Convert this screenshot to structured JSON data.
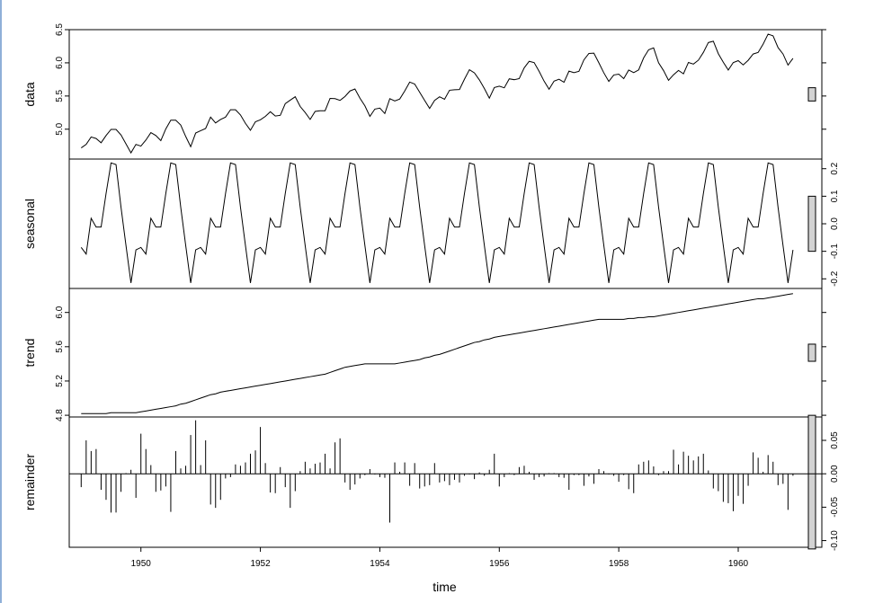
{
  "chart_data": {
    "type": "line",
    "title": "",
    "xlabel": "time",
    "xlim": [
      1948.8,
      1961.4
    ],
    "x_ticks": [
      1950,
      1952,
      1954,
      1956,
      1958,
      1960
    ],
    "x_tick_labels": [
      "1950",
      "1952",
      "1954",
      "1956",
      "1958",
      "1960"
    ],
    "start": 1949,
    "frequency": 12,
    "panels": [
      {
        "name": "data",
        "ylabel": "data",
        "ylim": [
          4.55,
          6.5
        ],
        "y_ticks": [
          5.0,
          5.5,
          6.0,
          6.5
        ],
        "y_tick_labels": [
          "5.0",
          "5.5",
          "6.0",
          "6.5"
        ],
        "axis_side": "left",
        "scale_bar_height": 0.2,
        "values": [
          4.718,
          4.771,
          4.883,
          4.86,
          4.796,
          4.905,
          4.997,
          4.997,
          4.913,
          4.779,
          4.644,
          4.771,
          4.745,
          4.836,
          4.949,
          4.905,
          4.828,
          5.004,
          5.136,
          5.136,
          5.063,
          4.89,
          4.736,
          4.942,
          4.977,
          5.011,
          5.182,
          5.094,
          5.147,
          5.182,
          5.293,
          5.293,
          5.215,
          5.088,
          4.984,
          5.112,
          5.142,
          5.193,
          5.263,
          5.199,
          5.209,
          5.385,
          5.438,
          5.489,
          5.342,
          5.252,
          5.147,
          5.268,
          5.278,
          5.278,
          5.464,
          5.46,
          5.434,
          5.493,
          5.576,
          5.606,
          5.468,
          5.352,
          5.193,
          5.303,
          5.318,
          5.236,
          5.46,
          5.425,
          5.455,
          5.576,
          5.71,
          5.68,
          5.557,
          5.434,
          5.313,
          5.434,
          5.489,
          5.451,
          5.587,
          5.595,
          5.598,
          5.753,
          5.897,
          5.849,
          5.743,
          5.613,
          5.468,
          5.628,
          5.649,
          5.624,
          5.759,
          5.746,
          5.762,
          5.924,
          6.023,
          6.004,
          5.872,
          5.724,
          5.602,
          5.724,
          5.753,
          5.707,
          5.875,
          5.852,
          5.872,
          6.045,
          6.142,
          6.146,
          6.001,
          5.849,
          5.72,
          5.817,
          5.829,
          5.762,
          5.891,
          5.852,
          5.894,
          6.075,
          6.197,
          6.225,
          6.001,
          5.883,
          5.737,
          5.82,
          5.886,
          5.835,
          6.006,
          5.981,
          6.04,
          6.157,
          6.306,
          6.326,
          6.138,
          6.009,
          5.892,
          6.004,
          6.033,
          5.969,
          6.038,
          6.133,
          6.157,
          6.282,
          6.433,
          6.407,
          6.23,
          6.133,
          5.966,
          6.068
        ]
      },
      {
        "name": "seasonal",
        "ylabel": "seasonal",
        "ylim": [
          -0.235,
          0.235
        ],
        "y_ticks": [
          -0.2,
          -0.1,
          0.0,
          0.1,
          0.2
        ],
        "y_tick_labels": [
          "-0.2",
          "-0.1",
          "0.0",
          "0.1",
          "0.2"
        ],
        "axis_side": "right",
        "scale_bar_height": 0.2,
        "cycle": [
          -0.086,
          -0.11,
          0.02,
          -0.012,
          -0.012,
          0.11,
          0.221,
          0.215,
          0.06,
          -0.079,
          -0.215,
          -0.095
        ],
        "years": 12
      },
      {
        "name": "trend",
        "ylabel": "trend",
        "ylim": [
          4.78,
          6.28
        ],
        "y_ticks": [
          4.8,
          5.2,
          5.6,
          6.0
        ],
        "y_tick_labels": [
          "4.8",
          "5.2",
          "5.6",
          "6.0"
        ],
        "axis_side": "left",
        "scale_bar_height": 0.2,
        "values": [
          4.82,
          4.82,
          4.82,
          4.82,
          4.82,
          4.82,
          4.83,
          4.83,
          4.83,
          4.83,
          4.83,
          4.83,
          4.84,
          4.85,
          4.86,
          4.87,
          4.88,
          4.89,
          4.9,
          4.91,
          4.93,
          4.94,
          4.96,
          4.98,
          5.0,
          5.02,
          5.04,
          5.05,
          5.07,
          5.08,
          5.09,
          5.1,
          5.11,
          5.12,
          5.13,
          5.14,
          5.15,
          5.16,
          5.17,
          5.18,
          5.19,
          5.2,
          5.21,
          5.22,
          5.23,
          5.24,
          5.25,
          5.26,
          5.27,
          5.28,
          5.3,
          5.32,
          5.34,
          5.36,
          5.37,
          5.38,
          5.39,
          5.4,
          5.4,
          5.4,
          5.4,
          5.4,
          5.4,
          5.4,
          5.41,
          5.42,
          5.43,
          5.44,
          5.45,
          5.47,
          5.48,
          5.5,
          5.51,
          5.53,
          5.55,
          5.57,
          5.59,
          5.61,
          5.63,
          5.65,
          5.66,
          5.68,
          5.69,
          5.71,
          5.72,
          5.73,
          5.74,
          5.75,
          5.76,
          5.77,
          5.78,
          5.79,
          5.8,
          5.81,
          5.82,
          5.83,
          5.84,
          5.85,
          5.86,
          5.87,
          5.88,
          5.89,
          5.9,
          5.91,
          5.92,
          5.92,
          5.92,
          5.92,
          5.92,
          5.92,
          5.93,
          5.93,
          5.94,
          5.94,
          5.95,
          5.95,
          5.96,
          5.97,
          5.98,
          5.99,
          6.0,
          6.01,
          6.02,
          6.03,
          6.04,
          6.05,
          6.06,
          6.07,
          6.08,
          6.09,
          6.1,
          6.11,
          6.12,
          6.13,
          6.14,
          6.15,
          6.16,
          6.16,
          6.17,
          6.18,
          6.19,
          6.2,
          6.21,
          6.22
        ]
      },
      {
        "name": "remainder",
        "ylabel": "remainder",
        "ylim": [
          -0.11,
          0.085
        ],
        "y_ticks": [
          -0.1,
          -0.05,
          0.0,
          0.05
        ],
        "y_tick_labels": [
          "-0.10",
          "-0.05",
          "0.00",
          "0.05"
        ],
        "axis_side": "right",
        "scale_bar_height": 0.2,
        "values": [
          -0.02,
          0.05,
          0.034,
          0.037,
          -0.024,
          -0.039,
          -0.058,
          -0.058,
          -0.027,
          0.001,
          0.006,
          -0.036,
          0.06,
          0.037,
          0.013,
          -0.027,
          -0.025,
          -0.019,
          -0.057,
          0.034,
          0.008,
          0.012,
          0.058,
          0.08,
          0.013,
          0.05,
          -0.046,
          -0.051,
          -0.039,
          -0.007,
          -0.005,
          0.014,
          0.012,
          0.017,
          0.03,
          0.035,
          0.07,
          0.016,
          -0.028,
          -0.029,
          0.01,
          -0.02,
          -0.051,
          -0.026,
          0.004,
          0.018,
          0.008,
          0.015,
          0.017,
          0.03,
          0.008,
          0.047,
          0.053,
          -0.013,
          -0.024,
          -0.016,
          -0.007,
          -0.002,
          0.007,
          -0.001,
          -0.005,
          -0.006,
          -0.073,
          0.017,
          0.003,
          0.017,
          -0.018,
          0.016,
          -0.022,
          -0.019,
          -0.017,
          0.016,
          -0.013,
          -0.011,
          -0.017,
          -0.009,
          -0.013,
          -0.003,
          -0.001,
          -0.008,
          0.002,
          -0.003,
          0.006,
          0.03,
          -0.019,
          -0.005,
          0.001,
          -0.002,
          0.01,
          0.012,
          0.003,
          -0.009,
          -0.005,
          -0.004,
          0.001,
          0.001,
          -0.005,
          -0.006,
          -0.024,
          -0.002,
          -0.002,
          -0.018,
          -0.004,
          -0.015,
          0.007,
          0.004,
          -0.001,
          -0.003,
          -0.012,
          -0.002,
          -0.023,
          -0.029,
          0.014,
          0.018,
          0.02,
          0.011,
          -0.002,
          0.004,
          0.004,
          0.036,
          0.014,
          0.033,
          0.027,
          0.02,
          0.026,
          0.03,
          0.005,
          -0.022,
          -0.026,
          -0.042,
          -0.044,
          -0.056,
          -0.033,
          -0.045,
          -0.018,
          0.032,
          0.024,
          0.003,
          0.028,
          0.018,
          -0.017,
          -0.015,
          -0.054,
          -0.003
        ]
      }
    ]
  }
}
